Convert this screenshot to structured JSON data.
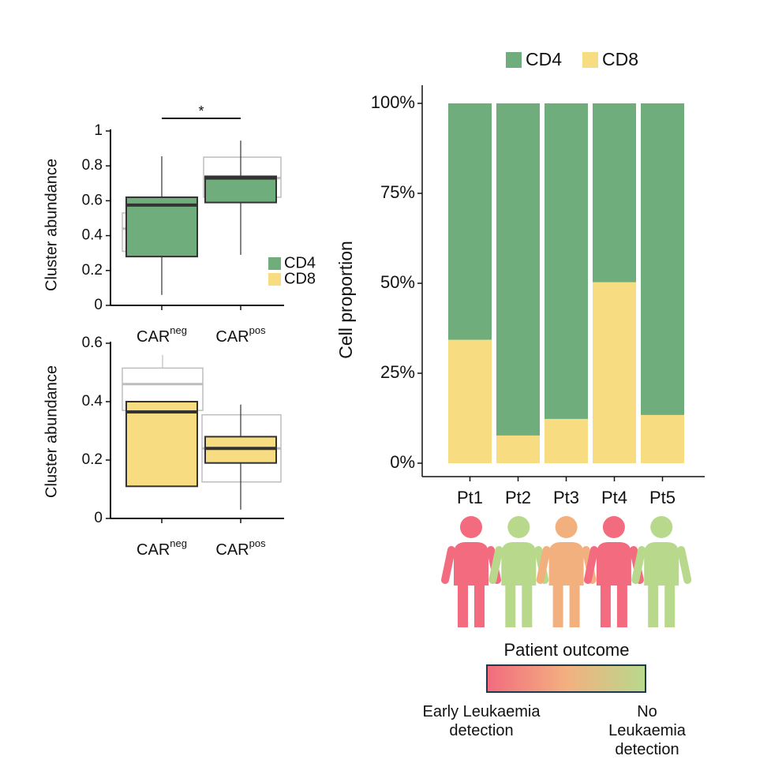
{
  "chart_data": [
    {
      "type": "box",
      "ylabel": "Cluster abundance",
      "ylim": [
        0,
        1
      ],
      "yticks": [
        0,
        0.2,
        0.4,
        0.6,
        0.8,
        1
      ],
      "categories": [
        {
          "text": "CAR",
          "sup": "neg"
        },
        {
          "text": "CAR",
          "sup": "pos"
        }
      ],
      "series": [
        {
          "name": "CD4",
          "color": "#6fae7c",
          "boxes": [
            {
              "low": 0.06,
              "q1": 0.28,
              "median": 0.575,
              "q3": 0.62,
              "high": 0.855
            },
            {
              "low": 0.29,
              "q1": 0.59,
              "median": 0.73,
              "q3": 0.74,
              "high": 0.945
            }
          ]
        },
        {
          "name": "CD8",
          "color": "#f7dc82",
          "boxes": []
        }
      ],
      "reference_color": "#bdbdbd",
      "reference_boxes": [
        {
          "q1": 0.31,
          "median": 0.44,
          "q3": 0.53
        },
        {
          "q1": 0.62,
          "median": 0.73,
          "q3": 0.85
        }
      ],
      "significance": "*"
    },
    {
      "type": "box",
      "ylabel": "Cluster abundance",
      "ylim": [
        0,
        0.6
      ],
      "yticks": [
        0,
        0.2,
        0.4,
        0.6
      ],
      "categories": [
        {
          "text": "CAR",
          "sup": "neg"
        },
        {
          "text": "CAR",
          "sup": "pos"
        }
      ],
      "series": [
        {
          "color": "#f7dc82",
          "boxes": [
            {
              "q1": 0.11,
              "median": 0.365,
              "q3": 0.4
            },
            {
              "low": 0.03,
              "q1": 0.19,
              "median": 0.24,
              "q3": 0.28,
              "high": 0.39
            }
          ]
        }
      ],
      "reference_color": "#bdbdbd",
      "reference_boxes": [
        {
          "q1": 0.37,
          "median": 0.46,
          "q3": 0.515,
          "high": 0.56
        },
        {
          "q1": 0.125,
          "median": 0.24,
          "q3": 0.355
        }
      ]
    },
    {
      "type": "stacked_bar",
      "ylabel": "Cell proportion",
      "ylim": [
        0,
        100
      ],
      "yticks": [
        {
          "value": 0,
          "label": "0%"
        },
        {
          "value": 25,
          "label": "25%"
        },
        {
          "value": 50,
          "label": "50%"
        },
        {
          "value": 75,
          "label": "75%"
        },
        {
          "value": 100,
          "label": "100%"
        }
      ],
      "categories": [
        "Pt1",
        "Pt2",
        "Pt3",
        "Pt4",
        "Pt5"
      ],
      "series": [
        {
          "name": "CD4",
          "color": "#6fae7c",
          "values": [
            65.7,
            92.3,
            87.7,
            49.7,
            86.6
          ]
        },
        {
          "name": "CD8",
          "color": "#f7dc82",
          "values": [
            34.3,
            7.7,
            12.3,
            50.3,
            13.4
          ]
        }
      ],
      "patient_colors": [
        "#f26b7e",
        "#b8d98c",
        "#f3b07f",
        "#f26b7e",
        "#b8d98c"
      ],
      "outcome": {
        "title": "Patient outcome",
        "gradient": [
          "#f26b7e",
          "#f3b07f",
          "#b8d98c"
        ],
        "low_label": "Early Leukaemia detection",
        "high_label": "No Leukaemia detection"
      }
    }
  ]
}
